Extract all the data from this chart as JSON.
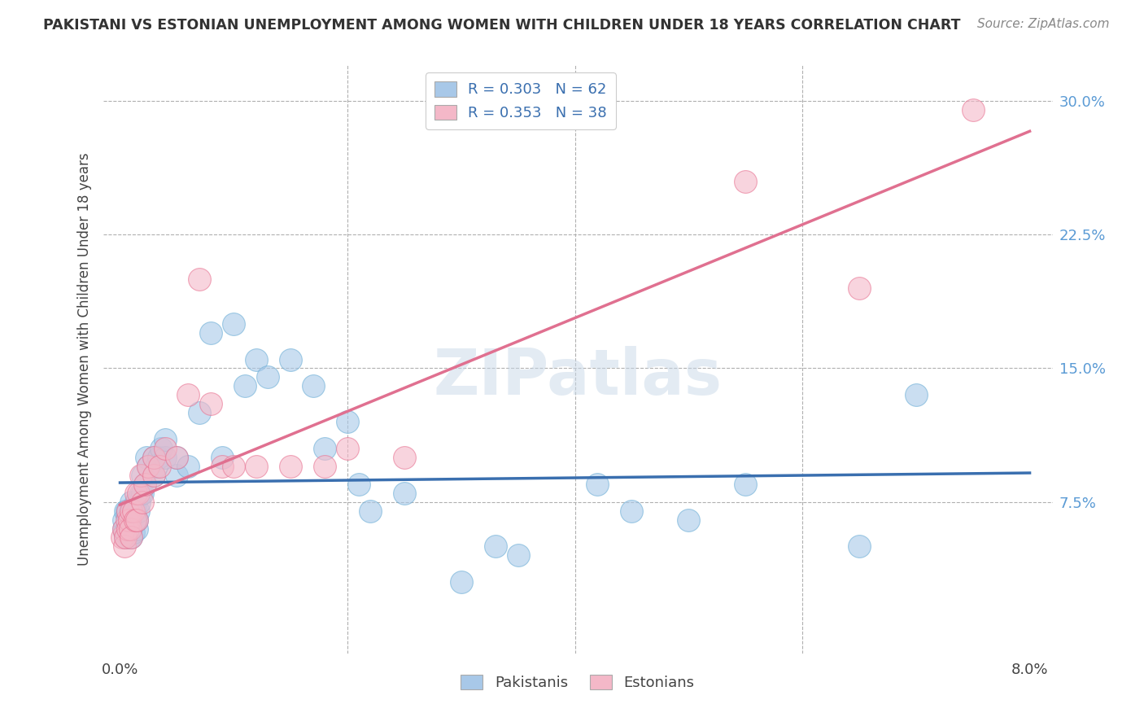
{
  "title": "PAKISTANI VS ESTONIAN UNEMPLOYMENT AMONG WOMEN WITH CHILDREN UNDER 18 YEARS CORRELATION CHART",
  "source": "Source: ZipAtlas.com",
  "ylabel": "Unemployment Among Women with Children Under 18 years",
  "blue_color": "#a8c8e8",
  "blue_edge_color": "#6baed6",
  "pink_color": "#f4b8c8",
  "pink_edge_color": "#e87090",
  "blue_line_color": "#3a6faf",
  "pink_line_color": "#e07090",
  "legend_label1": "Pakistanis",
  "legend_label2": "Estonians",
  "watermark": "ZIPatlas",
  "y_ticks_right": [
    0.075,
    0.15,
    0.225,
    0.3
  ],
  "y_tick_labels_right": [
    "7.5%",
    "15.0%",
    "22.5%",
    "30.0%"
  ],
  "pakistani_x": [
    0.0003,
    0.0003,
    0.0004,
    0.0005,
    0.0005,
    0.0006,
    0.0006,
    0.0007,
    0.0008,
    0.0008,
    0.0009,
    0.001,
    0.001,
    0.001,
    0.001,
    0.0012,
    0.0013,
    0.0013,
    0.0014,
    0.0015,
    0.0015,
    0.0016,
    0.0017,
    0.0018,
    0.002,
    0.002,
    0.0022,
    0.0023,
    0.0025,
    0.003,
    0.003,
    0.0032,
    0.0034,
    0.0036,
    0.004,
    0.004,
    0.005,
    0.005,
    0.006,
    0.007,
    0.008,
    0.009,
    0.01,
    0.011,
    0.012,
    0.013,
    0.015,
    0.017,
    0.018,
    0.02,
    0.021,
    0.022,
    0.025,
    0.03,
    0.033,
    0.035,
    0.042,
    0.045,
    0.05,
    0.055,
    0.065,
    0.07
  ],
  "pakistani_y": [
    0.06,
    0.065,
    0.058,
    0.055,
    0.07,
    0.06,
    0.07,
    0.065,
    0.055,
    0.06,
    0.062,
    0.055,
    0.06,
    0.065,
    0.075,
    0.058,
    0.065,
    0.07,
    0.075,
    0.06,
    0.065,
    0.07,
    0.075,
    0.08,
    0.08,
    0.09,
    0.085,
    0.1,
    0.095,
    0.09,
    0.1,
    0.095,
    0.1,
    0.105,
    0.1,
    0.11,
    0.09,
    0.1,
    0.095,
    0.125,
    0.17,
    0.1,
    0.175,
    0.14,
    0.155,
    0.145,
    0.155,
    0.14,
    0.105,
    0.12,
    0.085,
    0.07,
    0.08,
    0.03,
    0.05,
    0.045,
    0.085,
    0.07,
    0.065,
    0.085,
    0.05,
    0.135
  ],
  "estonian_x": [
    0.0002,
    0.0003,
    0.0004,
    0.0005,
    0.0006,
    0.0007,
    0.0007,
    0.0008,
    0.0009,
    0.001,
    0.001,
    0.0012,
    0.0013,
    0.0014,
    0.0015,
    0.0016,
    0.0018,
    0.002,
    0.0022,
    0.0025,
    0.003,
    0.003,
    0.0035,
    0.004,
    0.005,
    0.006,
    0.007,
    0.008,
    0.009,
    0.01,
    0.012,
    0.015,
    0.018,
    0.02,
    0.025,
    0.055,
    0.065,
    0.075
  ],
  "estonian_y": [
    0.055,
    0.06,
    0.05,
    0.055,
    0.065,
    0.06,
    0.07,
    0.065,
    0.06,
    0.055,
    0.07,
    0.07,
    0.065,
    0.08,
    0.065,
    0.08,
    0.09,
    0.075,
    0.085,
    0.095,
    0.09,
    0.1,
    0.095,
    0.105,
    0.1,
    0.135,
    0.2,
    0.13,
    0.095,
    0.095,
    0.095,
    0.095,
    0.095,
    0.105,
    0.1,
    0.255,
    0.195,
    0.295
  ]
}
